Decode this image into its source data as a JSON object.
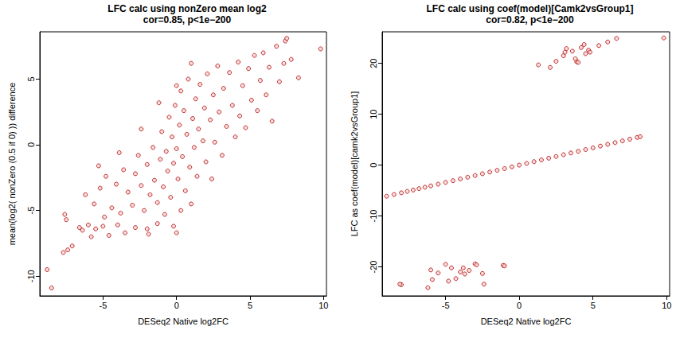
{
  "chart_data": [
    {
      "type": "scatter",
      "title": "LFC calc using nonZero mean log2",
      "subtitle": "cor=0.85, p<1e−200",
      "x_label": "DESeq2 Native log2FC",
      "y_label": "mean(log2( nonZero (0.5 if 0) )) difference",
      "color": "#b30000",
      "marker": "circle",
      "grid": false,
      "xlim": [
        -9.3,
        10.2
      ],
      "xticks": [
        -5,
        0,
        5,
        10
      ],
      "ylim": [
        -11.5,
        8.6
      ],
      "yticks": [
        -10,
        -5,
        0,
        5
      ],
      "x": [
        -8.8,
        -8.5,
        -7.7,
        -7.4,
        -7.1,
        -7.6,
        -7.5,
        -6.6,
        -6.4,
        -6.0,
        -5.8,
        -5.5,
        -5.0,
        -4.6,
        -4.0,
        -3.5,
        -2.8,
        -2.0,
        -1.3,
        -6.2,
        -5.6,
        -5.2,
        -4.8,
        -4.4,
        -4.1,
        -3.8,
        -3.6,
        -3.3,
        -3.0,
        -2.8,
        -2.6,
        -2.4,
        -2.2,
        -2.0,
        -1.8,
        -1.6,
        -1.5,
        -1.3,
        -1.1,
        -1.0,
        -0.9,
        -0.7,
        -0.6,
        -0.5,
        -0.4,
        -0.3,
        -0.2,
        -0.1,
        0,
        0.1,
        0.2,
        0.3,
        0.4,
        0.5,
        0.6,
        0.7,
        0.8,
        0.9,
        1.0,
        1.1,
        1.2,
        1.3,
        1.4,
        1.5,
        1.6,
        1.8,
        1.9,
        2.0,
        2.1,
        2.3,
        2.5,
        2.6,
        2.8,
        2.9,
        3.1,
        3.2,
        3.4,
        3.6,
        3.8,
        4.0,
        4.2,
        4.3,
        4.5,
        4.7,
        4.9,
        5.1,
        5.3,
        5.5,
        5.7,
        5.9,
        6.1,
        6.3,
        6.5,
        6.8,
        7.0,
        7.3,
        7.4,
        7.5,
        7.8,
        8.3,
        9.8,
        -3.9,
        -5.3,
        -4.9,
        -2.4,
        -1.9,
        0.3,
        1.0,
        -0.8,
        2.4,
        -0.2,
        0,
        0,
        -1.2
      ],
      "values": [
        -9.5,
        -10.9,
        -8.2,
        -8.0,
        -7.7,
        -5.3,
        -5.7,
        -6.3,
        -6.5,
        -6.1,
        -7.0,
        -6.4,
        -6.2,
        -6.9,
        -6.1,
        -6.7,
        -6.3,
        -6.4,
        -6.0,
        -3.8,
        -4.5,
        -3.3,
        -2.4,
        -4.8,
        -3.0,
        -5.2,
        -1.9,
        -3.6,
        -4.6,
        -2.2,
        -0.8,
        -3.1,
        -5.0,
        -1.5,
        -3.8,
        -0.2,
        -2.7,
        -4.4,
        -1.1,
        1.0,
        -3.2,
        -0.5,
        -2.0,
        2.1,
        -4.0,
        0.6,
        -1.4,
        3.0,
        -0.3,
        -2.6,
        1.5,
        4.1,
        -0.9,
        2.6,
        -3.5,
        0.8,
        5.0,
        -1.7,
        6.2,
        2.0,
        -0.2,
        3.5,
        -2.4,
        1.2,
        4.6,
        0.3,
        2.8,
        -1.3,
        5.4,
        1.9,
        3.8,
        0.2,
        6.0,
        2.5,
        -0.8,
        4.3,
        1.4,
        5.5,
        3.0,
        0.6,
        6.3,
        2.2,
        4.5,
        1.3,
        5.8,
        3.4,
        6.8,
        2.6,
        4.9,
        7.0,
        3.8,
        5.9,
        1.8,
        7.5,
        4.8,
        6.2,
        7.9,
        8.1,
        6.5,
        5.1,
        7.3,
        -0.6,
        -1.6,
        -5.5,
        1.2,
        -6.8,
        -5.0,
        -4.5,
        -5.3,
        -2.6,
        -6.2,
        -6.7,
        4.5,
        3.2
      ]
    },
    {
      "type": "scatter",
      "title": "LFC calc using coef(model)[Camk2vsGroup1]",
      "subtitle": "cor=0.82, p<1e−200",
      "x_label": "DESeq2 Native log2FC",
      "y_label": "LFC as coef(model)[camk2vsGroup1]",
      "color": "#b30000",
      "marker": "circle",
      "grid": false,
      "xlim": [
        -9.3,
        10.2
      ],
      "xticks": [
        -5,
        0,
        5,
        10
      ],
      "ylim": [
        -25.7,
        26.2
      ],
      "yticks": [
        -20,
        -10,
        0,
        10,
        20
      ],
      "x": [
        -9.0,
        -8.5,
        -8.0,
        -7.6,
        -7.2,
        -6.8,
        -6.4,
        -6.0,
        -5.5,
        -5.0,
        -4.5,
        -4.0,
        -3.5,
        -3.0,
        -2.5,
        -2.0,
        -1.5,
        -1.0,
        -0.5,
        0,
        0.5,
        1.0,
        1.5,
        2.0,
        2.5,
        3.0,
        3.5,
        4.0,
        4.5,
        5.0,
        5.5,
        6.0,
        6.5,
        7.0,
        7.5,
        8.0,
        8.2,
        1.3,
        2.1,
        2.5,
        3.0,
        3.1,
        3.2,
        3.6,
        3.9,
        4.0,
        4.2,
        4.4,
        4.7,
        4.8,
        5.4,
        6.0,
        6.6,
        9.8,
        3.8,
        4.5,
        -8.0,
        -8.1,
        -6.2,
        -6.0,
        -5.5,
        -5.0,
        -4.8,
        -4.6,
        -4.3,
        -3.8,
        -3.7,
        -3.4,
        -3.0,
        -2.9,
        -2.4,
        -2.5,
        -1.1,
        -1.0,
        -5.9,
        -4.0
      ],
      "values": [
        -6.12,
        -5.78,
        -5.44,
        -5.17,
        -4.9,
        -4.62,
        -4.35,
        -4.08,
        -3.74,
        -3.4,
        -3.06,
        -2.72,
        -2.38,
        -2.04,
        -1.7,
        -1.36,
        -1.02,
        -0.68,
        -0.34,
        0,
        0.34,
        0.68,
        1.02,
        1.36,
        1.7,
        2.04,
        2.38,
        2.72,
        3.06,
        3.4,
        3.74,
        4.08,
        4.42,
        4.76,
        5.1,
        5.44,
        5.58,
        19.7,
        19.2,
        20.4,
        21.5,
        22.2,
        22.9,
        22.4,
        20.3,
        20.2,
        23.1,
        23.7,
        22.6,
        22.2,
        23.5,
        24.2,
        24.9,
        25.0,
        20.9,
        21.9,
        -23.5,
        -23.4,
        -24.1,
        -20.6,
        -21.2,
        -19.5,
        -22.8,
        -20.2,
        -22.3,
        -20.2,
        -21.4,
        -20.7,
        -19.4,
        -19.6,
        -23.4,
        -21.3,
        -19.7,
        -19.8,
        -22.5,
        -21.0
      ]
    }
  ]
}
